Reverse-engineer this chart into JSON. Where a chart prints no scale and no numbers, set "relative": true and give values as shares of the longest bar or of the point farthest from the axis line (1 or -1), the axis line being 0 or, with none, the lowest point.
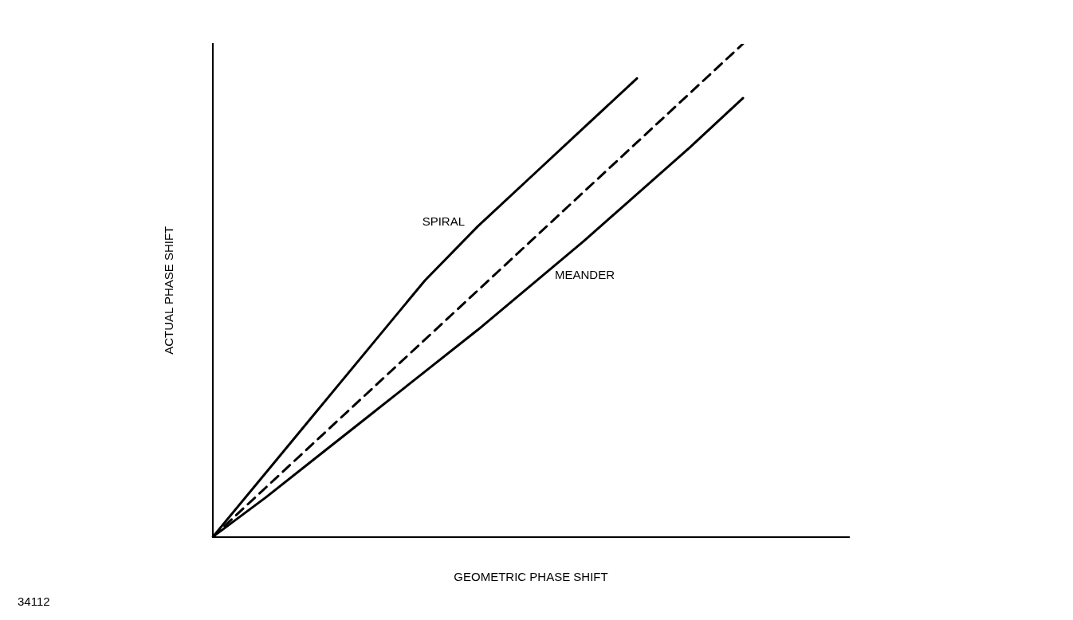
{
  "chart_data": {
    "type": "line",
    "relative": true,
    "xlabel": "GEOMETRIC PHASE SHIFT",
    "ylabel": "ACTUAL PHASE SHIFT",
    "categories": [
      null,
      null,
      null,
      null,
      null,
      null,
      null,
      null,
      null,
      null,
      null,
      null,
      null
    ],
    "series": [
      {
        "name": "SPIRAL",
        "color": "#000000",
        "values": [
          0,
          0.13,
          0.26,
          0.39,
          0.52,
          0.63,
          0.73,
          0.83,
          0.93,
          null,
          null,
          null,
          null
        ]
      },
      {
        "color": "#000000",
        "line_style": "dashed",
        "values": [
          0,
          0.1,
          0.2,
          0.3,
          0.4,
          0.5,
          0.6,
          0.7,
          0.8,
          0.9,
          1,
          null,
          null
        ]
      },
      {
        "name": "MEANDER",
        "color": "#000000",
        "values": [
          0,
          0.08,
          0.165,
          0.25,
          0.335,
          0.42,
          0.51,
          0.6,
          0.695,
          0.79,
          0.89,
          null,
          null
        ]
      }
    ],
    "legend": false,
    "marker": "none",
    "line_style": "solid",
    "grid": false,
    "annotations": [
      "34112"
    ]
  }
}
